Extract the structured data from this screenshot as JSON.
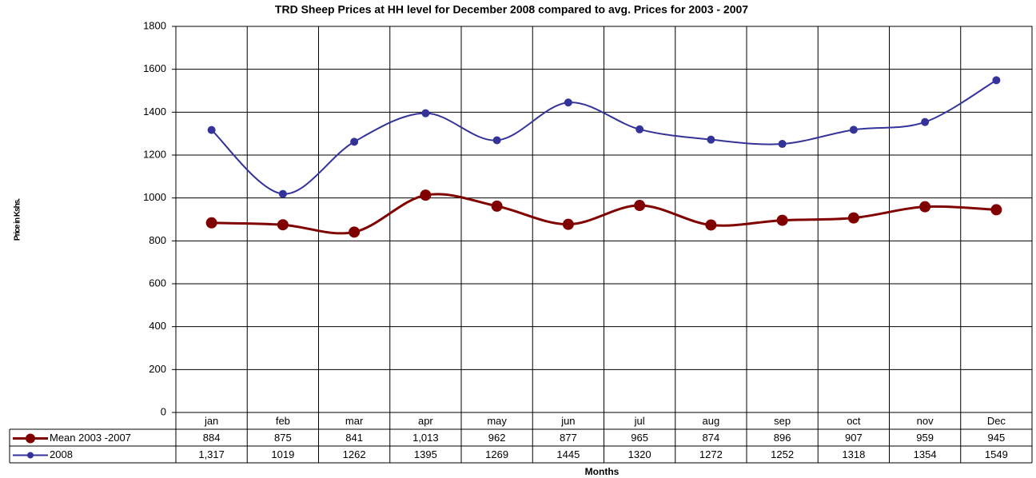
{
  "chart_data": {
    "type": "line",
    "title": "TRD Sheep Prices at HH level for December 2008 compared to avg. Prices for 2003 - 2007",
    "x_label": "Months",
    "y_label": "Price in Kshs.",
    "categories": [
      "jan",
      "feb",
      "mar",
      "apr",
      "may",
      "jun",
      "jul",
      "aug",
      "sep",
      "oct",
      "nov",
      "Dec"
    ],
    "series": [
      {
        "name": "Mean 2003 -2007",
        "color": "#800000",
        "values": [
          884,
          875,
          841,
          1013,
          962,
          877,
          965,
          874,
          896,
          907,
          959,
          945
        ],
        "value_labels": [
          "884",
          "875",
          "841",
          "1,013",
          "962",
          "877",
          "965",
          "874",
          "896",
          "907",
          "959",
          "945"
        ]
      },
      {
        "name": "2008",
        "color": "#333399",
        "values": [
          1317,
          1019,
          1262,
          1395,
          1269,
          1445,
          1320,
          1272,
          1252,
          1318,
          1354,
          1549
        ],
        "value_labels": [
          "1,317",
          "1019",
          "1262",
          "1395",
          "1269",
          "1445",
          "1320",
          "1272",
          "1252",
          "1318",
          "1354",
          "1549"
        ]
      }
    ],
    "ylim": [
      0,
      1800
    ],
    "yticks": [
      0,
      200,
      400,
      600,
      800,
      1000,
      1200,
      1400,
      1600,
      1800
    ],
    "grid": true,
    "smooth": true,
    "data_table": true
  }
}
